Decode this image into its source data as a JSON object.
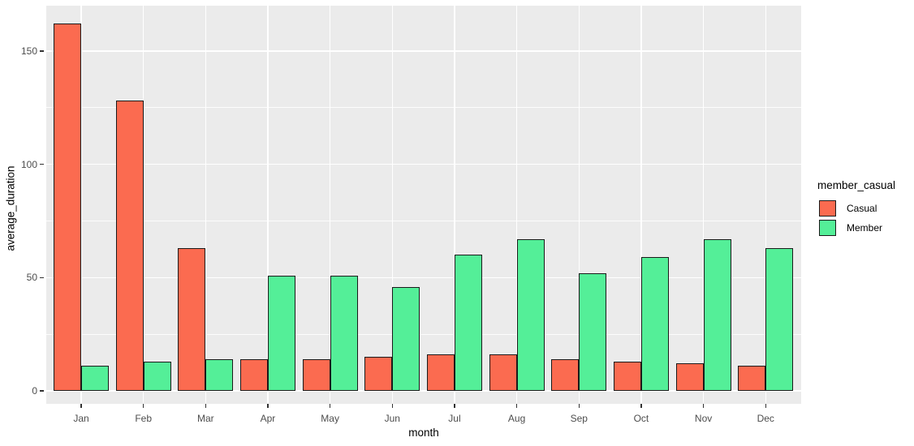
{
  "chart_data": {
    "type": "bar",
    "title": "",
    "xlabel": "month",
    "ylabel": "average_duration",
    "categories": [
      "Jan",
      "Feb",
      "Mar",
      "Apr",
      "May",
      "Jun",
      "Jul",
      "Aug",
      "Sep",
      "Oct",
      "Nov",
      "Dec"
    ],
    "series": [
      {
        "name": "Casual",
        "color": "#FB6B50",
        "values": [
          162,
          128,
          63,
          14,
          14,
          15,
          16,
          16,
          14,
          13,
          12,
          11
        ]
      },
      {
        "name": "Member",
        "color": "#54EF98",
        "values": [
          11,
          13,
          14,
          51,
          51,
          46,
          60,
          67,
          52,
          59,
          67,
          63
        ]
      }
    ],
    "legend_title": "member_casual",
    "legend_position": "right",
    "y_ticks": [
      0,
      50,
      100,
      150
    ],
    "y_minor_ticks": [
      25,
      75,
      125
    ],
    "ylim": [
      -8,
      170
    ],
    "grid": true,
    "style": {
      "panel_bg": "#EBEBEB",
      "grid_color": "#FFFFFF",
      "bar_border": "#1A1A1A",
      "axis_text_color": "#4D4D4D",
      "title_text_color": "#000000",
      "tick_color": "#333333"
    }
  }
}
